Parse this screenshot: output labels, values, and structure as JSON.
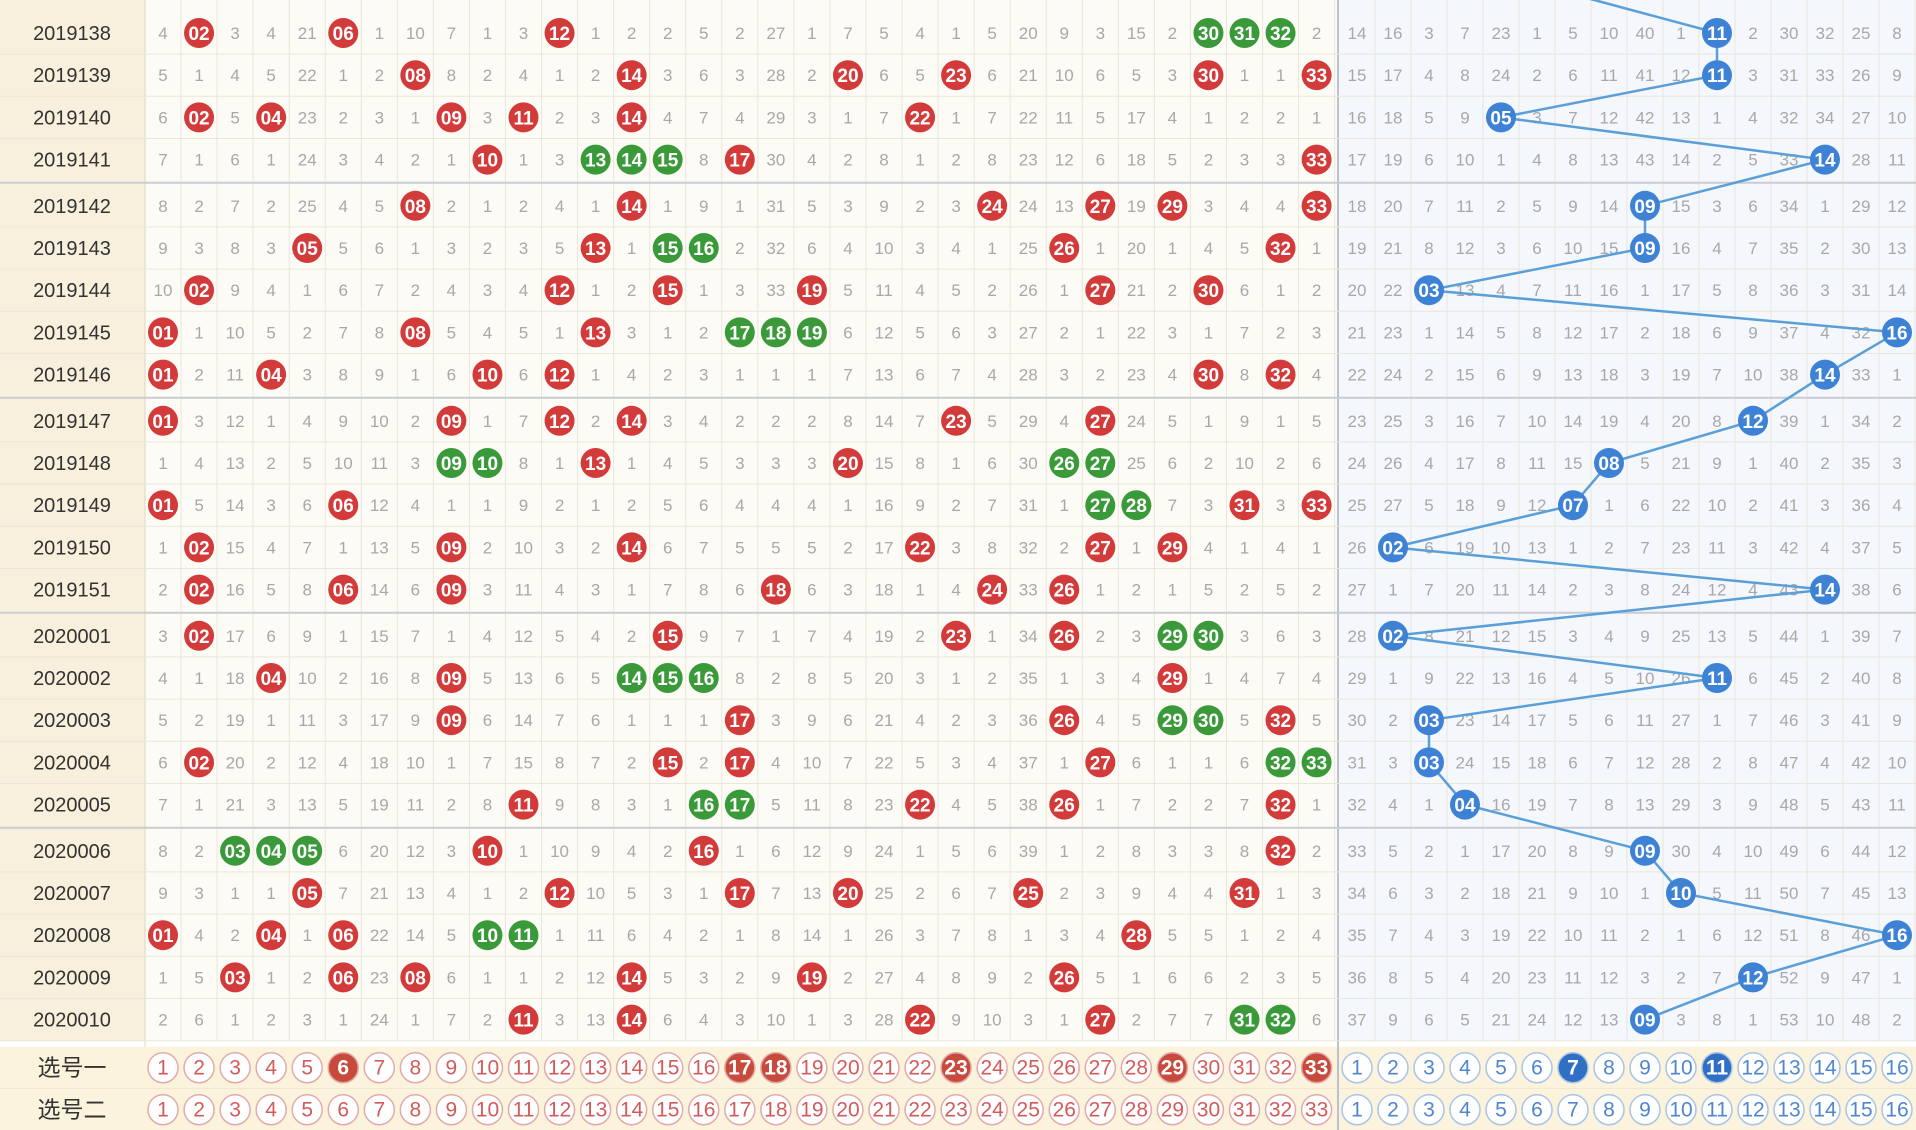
{
  "rows": [
    {
      "issue": "2019138",
      "red": [
        2,
        6,
        12,
        30,
        31,
        32
      ],
      "blue": 11,
      "rm": [
        4,
        0,
        3,
        4,
        21,
        0,
        1,
        10,
        7,
        1,
        3,
        0,
        1,
        2,
        2,
        5,
        2,
        27,
        1,
        7,
        5,
        4,
        1,
        5,
        20,
        9,
        3,
        15,
        2,
        0,
        0,
        0,
        2
      ],
      "bm": [
        14,
        16,
        3,
        7,
        23,
        1,
        5,
        10,
        40,
        1,
        0,
        2,
        30,
        32,
        25,
        8
      ]
    },
    {
      "issue": "2019139",
      "red": [
        8,
        14,
        20,
        23,
        30,
        33
      ],
      "blue": 11,
      "rm": [
        5,
        1,
        4,
        5,
        22,
        1,
        2,
        0,
        8,
        2,
        4,
        1,
        2,
        0,
        3,
        6,
        3,
        28,
        2,
        0,
        6,
        5,
        0,
        6,
        21,
        10,
        6,
        5,
        3,
        0,
        1,
        1,
        0
      ],
      "bm": [
        15,
        17,
        4,
        8,
        24,
        2,
        6,
        11,
        41,
        12,
        0,
        3,
        31,
        33,
        26,
        9
      ]
    },
    {
      "issue": "2019140",
      "red": [
        2,
        4,
        9,
        11,
        14,
        22
      ],
      "blue": 5,
      "rm": [
        6,
        0,
        5,
        0,
        23,
        2,
        3,
        1,
        0,
        3,
        0,
        2,
        3,
        0,
        4,
        7,
        4,
        29,
        3,
        1,
        7,
        0,
        1,
        7,
        22,
        11,
        5,
        17,
        4,
        1,
        2,
        2,
        1
      ],
      "bm": [
        16,
        18,
        5,
        9,
        0,
        3,
        7,
        12,
        42,
        13,
        1,
        4,
        32,
        34,
        27,
        10
      ]
    },
    {
      "issue": "2019141",
      "red": [
        10,
        13,
        14,
        15,
        17,
        33
      ],
      "blue": 14,
      "rm": [
        7,
        1,
        6,
        1,
        24,
        3,
        4,
        2,
        1,
        0,
        1,
        3,
        0,
        0,
        0,
        8,
        0,
        30,
        4,
        2,
        8,
        1,
        2,
        8,
        23,
        12,
        6,
        18,
        5,
        2,
        3,
        3,
        0
      ],
      "bm": [
        17,
        19,
        6,
        10,
        1,
        4,
        8,
        13,
        43,
        14,
        2,
        5,
        33,
        0,
        28,
        11
      ]
    },
    {
      "issue": "2019142",
      "red": [
        8,
        14,
        24,
        27,
        29,
        33
      ],
      "blue": 9,
      "rm": [
        8,
        2,
        7,
        2,
        25,
        4,
        5,
        0,
        2,
        1,
        2,
        4,
        1,
        0,
        1,
        9,
        1,
        31,
        5,
        3,
        9,
        2,
        3,
        0,
        24,
        13,
        0,
        19,
        0,
        3,
        4,
        4,
        0
      ],
      "bm": [
        18,
        20,
        7,
        11,
        2,
        5,
        9,
        14,
        0,
        15,
        3,
        6,
        34,
        1,
        29,
        12
      ]
    },
    {
      "issue": "2019143",
      "red": [
        5,
        13,
        15,
        16,
        26,
        32
      ],
      "blue": 9,
      "rm": [
        9,
        3,
        8,
        3,
        0,
        5,
        6,
        1,
        3,
        2,
        3,
        5,
        0,
        1,
        0,
        0,
        2,
        32,
        6,
        4,
        10,
        3,
        4,
        1,
        25,
        0,
        1,
        20,
        1,
        4,
        5,
        0,
        1
      ],
      "bm": [
        19,
        21,
        8,
        12,
        3,
        6,
        10,
        15,
        0,
        16,
        4,
        7,
        35,
        2,
        30,
        13
      ]
    },
    {
      "issue": "2019144",
      "red": [
        2,
        12,
        15,
        19,
        27,
        30
      ],
      "blue": 3,
      "rm": [
        10,
        0,
        9,
        4,
        1,
        6,
        7,
        2,
        4,
        3,
        4,
        0,
        1,
        2,
        0,
        1,
        3,
        33,
        0,
        5,
        11,
        4,
        5,
        2,
        26,
        1,
        0,
        21,
        2,
        0,
        6,
        1,
        2
      ],
      "bm": [
        20,
        22,
        0,
        13,
        4,
        7,
        11,
        16,
        1,
        17,
        5,
        8,
        36,
        3,
        31,
        14
      ]
    },
    {
      "issue": "2019145",
      "red": [
        1,
        8,
        13,
        17,
        18,
        19
      ],
      "blue": 16,
      "rm": [
        0,
        1,
        10,
        5,
        2,
        7,
        8,
        0,
        5,
        4,
        5,
        1,
        0,
        3,
        1,
        2,
        0,
        0,
        0,
        6,
        12,
        5,
        6,
        3,
        27,
        2,
        1,
        22,
        3,
        1,
        7,
        2,
        3
      ],
      "bm": [
        21,
        23,
        1,
        14,
        5,
        8,
        12,
        17,
        2,
        18,
        6,
        9,
        37,
        4,
        32,
        0
      ]
    },
    {
      "issue": "2019146",
      "red": [
        1,
        4,
        10,
        12,
        30,
        32
      ],
      "blue": 14,
      "rm": [
        0,
        2,
        11,
        0,
        3,
        8,
        9,
        1,
        6,
        0,
        6,
        0,
        1,
        4,
        2,
        3,
        1,
        1,
        1,
        7,
        13,
        6,
        7,
        4,
        28,
        3,
        2,
        23,
        4,
        0,
        8,
        0,
        4
      ],
      "bm": [
        22,
        24,
        2,
        15,
        6,
        9,
        13,
        18,
        3,
        19,
        7,
        10,
        38,
        0,
        33,
        1
      ]
    },
    {
      "issue": "2019147",
      "red": [
        1,
        9,
        12,
        14,
        23,
        27
      ],
      "blue": 12,
      "rm": [
        0,
        3,
        12,
        1,
        4,
        9,
        10,
        2,
        0,
        1,
        7,
        0,
        2,
        0,
        3,
        4,
        2,
        2,
        2,
        8,
        14,
        7,
        0,
        5,
        29,
        4,
        0,
        24,
        5,
        1,
        9,
        1,
        5
      ],
      "bm": [
        23,
        25,
        3,
        16,
        7,
        10,
        14,
        19,
        4,
        20,
        8,
        0,
        39,
        1,
        34,
        2
      ]
    },
    {
      "issue": "2019148",
      "red": [
        9,
        10,
        13,
        20,
        26,
        27
      ],
      "blue": 8,
      "rm": [
        1,
        4,
        13,
        2,
        5,
        10,
        11,
        3,
        0,
        0,
        8,
        1,
        0,
        1,
        4,
        5,
        3,
        3,
        3,
        0,
        15,
        8,
        1,
        6,
        30,
        0,
        0,
        25,
        6,
        2,
        10,
        2,
        6
      ],
      "bm": [
        24,
        26,
        4,
        17,
        8,
        11,
        15,
        0,
        5,
        21,
        9,
        1,
        40,
        2,
        35,
        3
      ]
    },
    {
      "issue": "2019149",
      "red": [
        1,
        6,
        27,
        28,
        31,
        33
      ],
      "blue": 7,
      "rm": [
        0,
        5,
        14,
        3,
        6,
        0,
        12,
        4,
        1,
        1,
        9,
        2,
        1,
        2,
        5,
        6,
        4,
        4,
        4,
        1,
        16,
        9,
        2,
        7,
        31,
        1,
        0,
        0,
        7,
        3,
        0,
        3,
        0
      ],
      "bm": [
        25,
        27,
        5,
        18,
        9,
        12,
        0,
        1,
        6,
        22,
        10,
        2,
        41,
        3,
        36,
        4
      ]
    },
    {
      "issue": "2019150",
      "red": [
        2,
        9,
        14,
        22,
        27,
        29
      ],
      "blue": 2,
      "rm": [
        1,
        0,
        15,
        4,
        7,
        1,
        13,
        5,
        0,
        2,
        10,
        3,
        2,
        0,
        6,
        7,
        5,
        5,
        5,
        2,
        17,
        0,
        3,
        8,
        32,
        2,
        0,
        1,
        0,
        4,
        1,
        4,
        1
      ],
      "bm": [
        26,
        0,
        6,
        19,
        10,
        13,
        1,
        2,
        7,
        23,
        11,
        3,
        42,
        4,
        37,
        5
      ]
    },
    {
      "issue": "2019151",
      "red": [
        2,
        6,
        9,
        18,
        24,
        26
      ],
      "blue": 14,
      "rm": [
        2,
        0,
        16,
        5,
        8,
        0,
        14,
        6,
        0,
        3,
        11,
        4,
        3,
        1,
        7,
        8,
        6,
        0,
        6,
        3,
        18,
        1,
        4,
        0,
        33,
        0,
        1,
        2,
        1,
        5,
        2,
        5,
        2
      ],
      "bm": [
        27,
        1,
        7,
        20,
        11,
        14,
        2,
        3,
        8,
        24,
        12,
        4,
        43,
        0,
        38,
        6
      ]
    },
    {
      "issue": "2020001",
      "red": [
        2,
        15,
        23,
        26,
        29,
        30
      ],
      "blue": 2,
      "rm": [
        3,
        0,
        17,
        6,
        9,
        1,
        15,
        7,
        1,
        4,
        12,
        5,
        4,
        2,
        0,
        9,
        7,
        1,
        7,
        4,
        19,
        2,
        0,
        1,
        34,
        0,
        2,
        3,
        0,
        0,
        3,
        6,
        3
      ],
      "bm": [
        28,
        0,
        8,
        21,
        12,
        15,
        3,
        4,
        9,
        25,
        13,
        5,
        44,
        1,
        39,
        7
      ]
    },
    {
      "issue": "2020002",
      "red": [
        4,
        9,
        14,
        15,
        16,
        29
      ],
      "blue": 11,
      "rm": [
        4,
        1,
        18,
        0,
        10,
        2,
        16,
        8,
        0,
        5,
        13,
        6,
        5,
        0,
        0,
        0,
        8,
        2,
        8,
        5,
        20,
        3,
        1,
        2,
        35,
        1,
        3,
        4,
        0,
        1,
        4,
        7,
        4
      ],
      "bm": [
        29,
        1,
        9,
        22,
        13,
        16,
        4,
        5,
        10,
        26,
        0,
        6,
        45,
        2,
        40,
        8
      ]
    },
    {
      "issue": "2020003",
      "red": [
        9,
        17,
        26,
        29,
        30,
        32
      ],
      "blue": 3,
      "rm": [
        5,
        2,
        19,
        1,
        11,
        3,
        17,
        9,
        0,
        6,
        14,
        7,
        6,
        1,
        1,
        1,
        0,
        3,
        9,
        6,
        21,
        4,
        2,
        3,
        36,
        0,
        4,
        5,
        0,
        0,
        5,
        0,
        5
      ],
      "bm": [
        30,
        2,
        0,
        23,
        14,
        17,
        5,
        6,
        11,
        27,
        1,
        7,
        46,
        3,
        41,
        9
      ]
    },
    {
      "issue": "2020004",
      "red": [
        2,
        15,
        17,
        27,
        32,
        33
      ],
      "blue": 3,
      "rm": [
        6,
        0,
        20,
        2,
        12,
        4,
        18,
        10,
        1,
        7,
        15,
        8,
        7,
        2,
        0,
        2,
        0,
        4,
        10,
        7,
        22,
        5,
        3,
        4,
        37,
        1,
        0,
        6,
        1,
        1,
        6,
        0,
        0
      ],
      "bm": [
        31,
        3,
        0,
        24,
        15,
        18,
        6,
        7,
        12,
        28,
        2,
        8,
        47,
        4,
        42,
        10
      ]
    },
    {
      "issue": "2020005",
      "red": [
        11,
        16,
        17,
        22,
        26,
        32
      ],
      "blue": 4,
      "rm": [
        7,
        1,
        21,
        3,
        13,
        5,
        19,
        11,
        2,
        8,
        0,
        9,
        8,
        3,
        1,
        0,
        0,
        5,
        11,
        8,
        23,
        0,
        4,
        5,
        38,
        0,
        1,
        7,
        2,
        2,
        7,
        0,
        1
      ],
      "bm": [
        32,
        4,
        1,
        0,
        16,
        19,
        7,
        8,
        13,
        29,
        3,
        9,
        48,
        5,
        43,
        11
      ]
    },
    {
      "issue": "2020006",
      "red": [
        3,
        4,
        5,
        10,
        16,
        32
      ],
      "blue": 9,
      "rm": [
        8,
        2,
        0,
        0,
        0,
        6,
        20,
        12,
        3,
        0,
        1,
        10,
        9,
        4,
        2,
        0,
        1,
        6,
        12,
        9,
        24,
        1,
        5,
        6,
        39,
        1,
        2,
        8,
        3,
        3,
        8,
        0,
        2
      ],
      "bm": [
        33,
        5,
        2,
        1,
        17,
        20,
        8,
        9,
        0,
        30,
        4,
        10,
        49,
        6,
        44,
        12
      ]
    },
    {
      "issue": "2020007",
      "red": [
        5,
        12,
        17,
        20,
        25,
        31
      ],
      "blue": 10,
      "rm": [
        9,
        3,
        1,
        1,
        0,
        7,
        21,
        13,
        4,
        1,
        2,
        0,
        10,
        5,
        3,
        1,
        0,
        7,
        13,
        0,
        25,
        2,
        6,
        7,
        0,
        2,
        3,
        9,
        4,
        4,
        0,
        1,
        3
      ],
      "bm": [
        34,
        6,
        3,
        2,
        18,
        21,
        9,
        10,
        1,
        0,
        5,
        11,
        50,
        7,
        45,
        13
      ]
    },
    {
      "issue": "2020008",
      "red": [
        1,
        4,
        6,
        10,
        11,
        28
      ],
      "blue": 16,
      "rm": [
        0,
        4,
        2,
        0,
        1,
        0,
        22,
        14,
        5,
        0,
        0,
        1,
        11,
        6,
        4,
        2,
        1,
        8,
        14,
        1,
        26,
        3,
        7,
        8,
        1,
        3,
        4,
        0,
        5,
        5,
        1,
        2,
        4
      ],
      "bm": [
        35,
        7,
        4,
        3,
        19,
        22,
        10,
        11,
        2,
        1,
        6,
        12,
        51,
        8,
        46,
        0
      ]
    },
    {
      "issue": "2020009",
      "red": [
        3,
        6,
        8,
        14,
        19,
        26
      ],
      "blue": 12,
      "rm": [
        1,
        5,
        0,
        1,
        2,
        0,
        23,
        0,
        6,
        1,
        1,
        2,
        12,
        0,
        5,
        3,
        2,
        9,
        0,
        2,
        27,
        4,
        8,
        9,
        2,
        0,
        5,
        1,
        6,
        6,
        2,
        3,
        5
      ],
      "bm": [
        36,
        8,
        5,
        4,
        20,
        23,
        11,
        12,
        3,
        2,
        7,
        0,
        52,
        9,
        47,
        1
      ]
    },
    {
      "issue": "2020010",
      "red": [
        11,
        14,
        22,
        27,
        31,
        32
      ],
      "blue": 9,
      "rm": [
        2,
        6,
        1,
        2,
        3,
        1,
        24,
        1,
        7,
        2,
        0,
        3,
        13,
        0,
        6,
        4,
        3,
        10,
        1,
        3,
        28,
        0,
        9,
        10,
        3,
        1,
        0,
        2,
        7,
        7,
        0,
        0,
        6
      ],
      "bm": [
        37,
        9,
        6,
        5,
        21,
        24,
        12,
        13,
        0,
        3,
        8,
        1,
        53,
        10,
        48,
        2
      ]
    }
  ],
  "picker": [
    {
      "label": "选号一",
      "red_selected": [
        6,
        17,
        18,
        23,
        29,
        33
      ],
      "blue_selected": [
        7,
        11
      ]
    },
    {
      "label": "选号二",
      "red_selected": [],
      "blue_selected": []
    }
  ],
  "colors": {
    "red": "#d33a3a",
    "green": "#3a9a3a",
    "blue": "#3e82d6",
    "line": "#5b9fd8",
    "issue_bg": "#f8f0dc",
    "cell_bg": "#fdfbf6",
    "blue_cell_bg": "#f4f7fc",
    "picker_bg": "#fbf3dc",
    "grid": "#ebe6da"
  }
}
